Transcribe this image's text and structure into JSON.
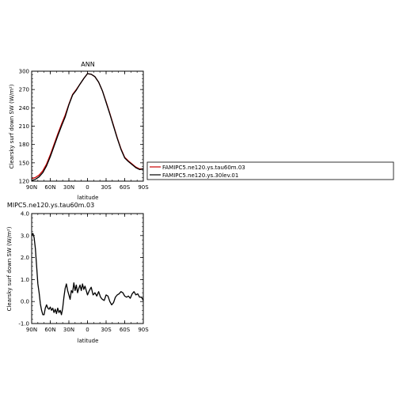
{
  "chart_data": [
    {
      "type": "line",
      "title": "ANN",
      "xlabel": "latitude",
      "ylabel": "Clearsky surf down SW (W/m²)",
      "xlim": [
        90,
        -90
      ],
      "ylim": [
        120,
        300
      ],
      "x_ticks": [
        90,
        60,
        30,
        0,
        -30,
        -60,
        -90
      ],
      "x_tick_labels": [
        "90N",
        "60N",
        "30N",
        "0",
        "30S",
        "60S",
        "90S"
      ],
      "y_ticks": [
        120,
        150,
        180,
        210,
        240,
        270,
        300
      ],
      "y_tick_labels": [
        "120",
        "150",
        "180",
        "210",
        "240",
        "270",
        "300"
      ],
      "legend": {
        "placement": "right",
        "entries": [
          "FAMIPC5.ne120.ys.tau60m.03",
          "FAMIPC5.ne120.ys.30lev.01"
        ]
      },
      "series": [
        {
          "name": "FAMIPC5.ne120.ys.tau60m.03",
          "color": "#cc0000",
          "x": [
            90,
            84,
            78,
            72,
            66,
            60,
            54,
            48,
            42,
            36,
            30,
            24,
            18,
            12,
            6,
            0,
            -6,
            -12,
            -18,
            -24,
            -30,
            -36,
            -42,
            -48,
            -54,
            -60,
            -66,
            -72,
            -78,
            -84,
            -90
          ],
          "y": [
            124,
            126,
            130,
            137,
            148,
            163,
            180,
            197,
            213,
            228,
            246,
            262,
            270,
            279,
            288,
            296,
            295,
            291,
            282,
            268,
            250,
            231,
            211,
            191,
            173,
            159,
            153,
            148,
            143,
            140,
            140
          ]
        },
        {
          "name": "FAMIPC5.ne120.ys.30lev.01",
          "color": "#000000",
          "x": [
            90,
            84,
            78,
            72,
            66,
            60,
            54,
            48,
            42,
            36,
            30,
            24,
            18,
            12,
            6,
            0,
            -6,
            -12,
            -18,
            -24,
            -30,
            -36,
            -42,
            -48,
            -54,
            -60,
            -66,
            -72,
            -78,
            -84,
            -90
          ],
          "y": [
            121,
            123,
            127,
            134,
            145,
            160,
            177,
            194,
            210,
            225,
            245,
            261,
            269,
            279,
            288,
            296,
            295,
            291,
            282,
            268,
            249,
            230,
            210,
            190,
            172,
            158,
            152,
            147,
            142,
            139,
            140
          ]
        }
      ]
    },
    {
      "type": "line",
      "title": "MIPC5.ne120.ys.tau60m.03",
      "xlabel": "latitude",
      "ylabel": "Clearsky surf down SW (W/m²)",
      "xlim": [
        90,
        -90
      ],
      "ylim": [
        -1.0,
        4.0
      ],
      "x_ticks": [
        90,
        60,
        30,
        0,
        -30,
        -60,
        -90
      ],
      "x_tick_labels": [
        "90N",
        "60N",
        "30N",
        "0",
        "30S",
        "60S",
        "90S"
      ],
      "y_ticks": [
        -1.0,
        0.0,
        1.0,
        2.0,
        3.0,
        4.0
      ],
      "y_tick_labels": [
        "-1.0",
        "0.0",
        "1.0",
        "2.0",
        "3.0",
        "4.0"
      ],
      "series": [
        {
          "color": "#000000",
          "x": [
            90,
            88,
            86,
            84,
            82,
            80,
            78,
            76,
            74,
            72,
            70,
            68,
            66,
            64,
            62,
            60,
            58,
            56,
            54,
            52,
            50,
            48,
            46,
            44,
            42,
            40,
            38,
            36,
            34,
            32,
            30,
            28,
            26,
            24,
            22,
            20,
            18,
            16,
            14,
            12,
            10,
            8,
            6,
            4,
            2,
            0,
            -3,
            -6,
            -9,
            -12,
            -15,
            -18,
            -21,
            -24,
            -27,
            -30,
            -33,
            -36,
            -39,
            -42,
            -45,
            -48,
            -51,
            -54,
            -57,
            -60,
            -63,
            -66,
            -69,
            -72,
            -75,
            -78,
            -81,
            -84,
            -87,
            -90
          ],
          "y": [
            3.0,
            3.1,
            2.9,
            2.4,
            1.6,
            0.8,
            0.4,
            -0.1,
            -0.4,
            -0.6,
            -0.6,
            -0.3,
            -0.15,
            -0.3,
            -0.35,
            -0.25,
            -0.4,
            -0.3,
            -0.5,
            -0.35,
            -0.55,
            -0.3,
            -0.5,
            -0.4,
            -0.6,
            -0.3,
            0.2,
            0.6,
            0.8,
            0.5,
            0.3,
            0.1,
            0.5,
            0.4,
            0.85,
            0.5,
            0.75,
            0.4,
            0.6,
            0.75,
            0.5,
            0.8,
            0.55,
            0.7,
            0.5,
            0.3,
            0.5,
            0.65,
            0.3,
            0.4,
            0.25,
            0.45,
            0.2,
            0.1,
            0.05,
            0.3,
            0.25,
            0.0,
            -0.15,
            -0.05,
            0.2,
            0.3,
            0.35,
            0.45,
            0.4,
            0.25,
            0.2,
            0.25,
            0.15,
            0.35,
            0.45,
            0.3,
            0.35,
            0.2,
            0.2,
            0.05
          ]
        }
      ]
    }
  ]
}
